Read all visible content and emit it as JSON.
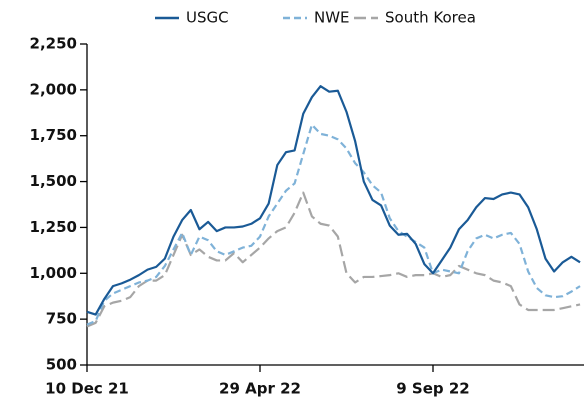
{
  "chart_data": {
    "type": "line",
    "categories": [
      "10 Dec 21",
      null,
      null,
      null,
      null,
      null,
      null,
      null,
      null,
      null,
      null,
      null,
      null,
      null,
      null,
      null,
      null,
      null,
      null,
      null,
      "29 Apr 22",
      null,
      null,
      null,
      null,
      null,
      null,
      null,
      null,
      null,
      null,
      null,
      null,
      null,
      null,
      null,
      null,
      null,
      null,
      null,
      "9 Sep 22",
      null,
      null,
      null,
      null,
      null,
      null,
      null,
      null,
      null,
      null,
      null,
      null,
      null,
      null,
      null,
      null,
      null
    ],
    "series": [
      {
        "name": "USGC",
        "color": "#1a5a96",
        "line_style": "solid",
        "values": [
          790,
          775,
          860,
          930,
          945,
          965,
          990,
          1020,
          1035,
          1080,
          1200,
          1290,
          1345,
          1240,
          1280,
          1230,
          1250,
          1250,
          1255,
          1270,
          1300,
          1380,
          1590,
          1660,
          1670,
          1870,
          1960,
          2020,
          1990,
          1995,
          1880,
          1720,
          1500,
          1400,
          1370,
          1260,
          1210,
          1215,
          1160,
          1050,
          1000,
          1070,
          1140,
          1240,
          1290,
          1360,
          1410,
          1405,
          1430,
          1440,
          1430,
          1360,
          1240,
          1080,
          1010,
          1060,
          1090,
          1060
        ]
      },
      {
        "name": "NWE",
        "color": "#7fb2d8",
        "line_style": "dashed",
        "values": [
          720,
          740,
          850,
          890,
          910,
          930,
          950,
          960,
          980,
          1040,
          1130,
          1220,
          1100,
          1200,
          1180,
          1120,
          1100,
          1120,
          1140,
          1150,
          1200,
          1310,
          1380,
          1450,
          1490,
          1650,
          1810,
          1760,
          1750,
          1730,
          1680,
          1600,
          1550,
          1480,
          1440,
          1300,
          1230,
          1200,
          1170,
          1140,
          1000,
          1020,
          1010,
          1000,
          1120,
          1190,
          1210,
          1190,
          1210,
          1220,
          1160,
          1010,
          920,
          880,
          870,
          875,
          900,
          930
        ]
      },
      {
        "name": "South Korea",
        "color": "#a6a6a6",
        "line_style": "dashed",
        "values": [
          710,
          730,
          820,
          840,
          850,
          870,
          930,
          960,
          960,
          990,
          1100,
          1210,
          1100,
          1130,
          1090,
          1070,
          1070,
          1110,
          1060,
          1100,
          1140,
          1190,
          1230,
          1250,
          1330,
          1440,
          1310,
          1270,
          1260,
          1200,
          1000,
          950,
          980,
          980,
          985,
          990,
          1000,
          980,
          990,
          990,
          1000,
          980,
          990,
          1040,
          1020,
          1000,
          990,
          960,
          950,
          930,
          830,
          800,
          800,
          800,
          800,
          810,
          820,
          830
        ]
      }
    ],
    "ylim": [
      500,
      2250
    ],
    "yticks": [
      500,
      750,
      {
        "value": 1000,
        "label": "1,000"
      },
      {
        "value": 1250,
        "label": "1,250"
      },
      {
        "value": 1500,
        "label": "1,500"
      },
      {
        "value": 1750,
        "label": "1,750"
      },
      {
        "value": 2000,
        "label": "2,000"
      },
      {
        "value": 2250,
        "label": "2,250"
      }
    ],
    "grid": false,
    "legend": "top"
  }
}
